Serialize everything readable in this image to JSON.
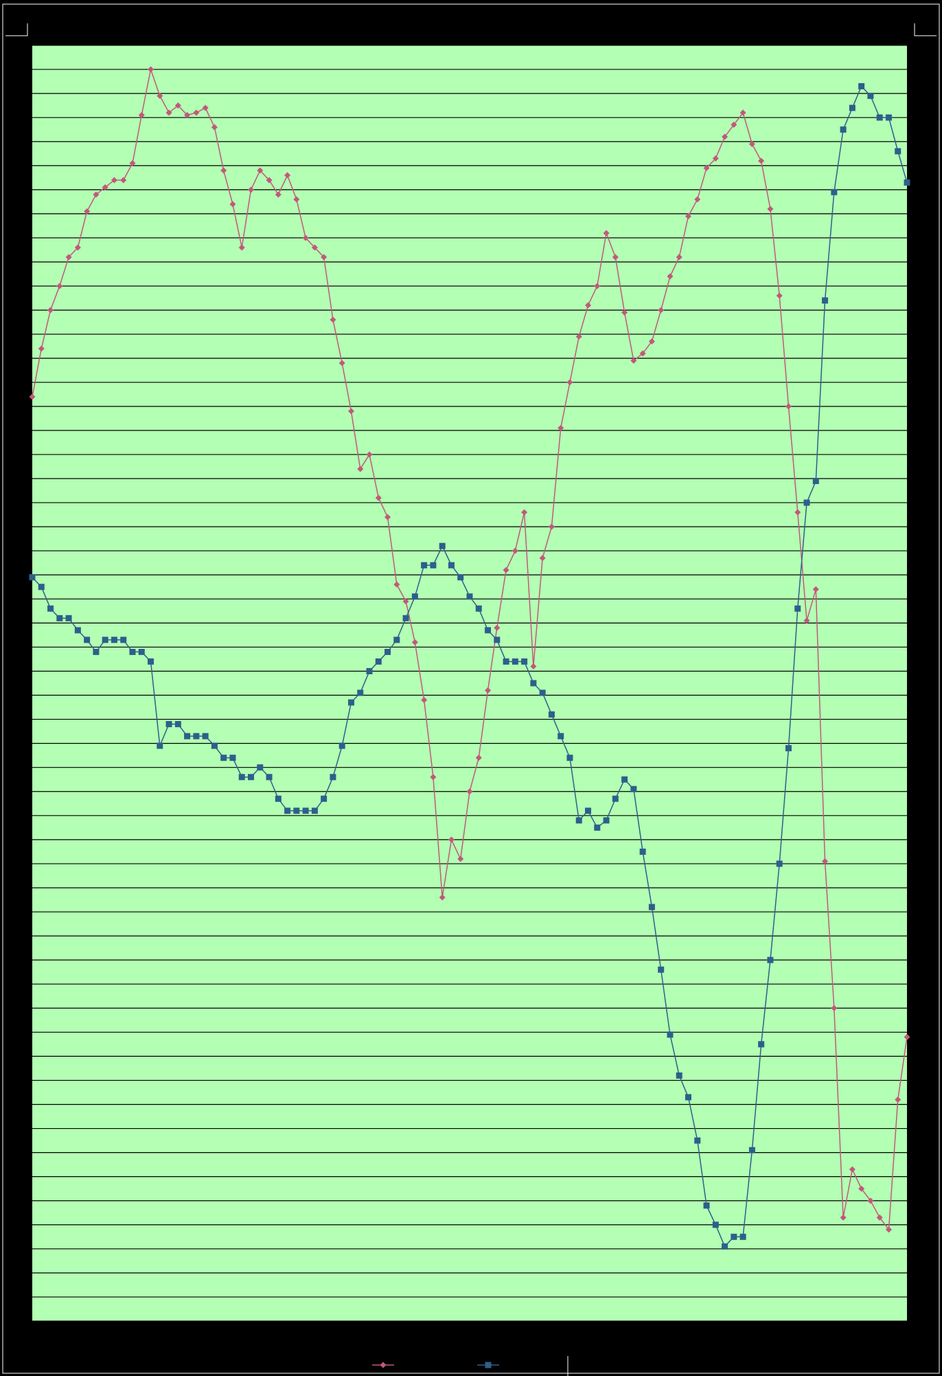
{
  "chart_data": {
    "type": "line",
    "x": [
      0,
      1,
      2,
      3,
      4,
      5,
      6,
      7,
      8,
      9,
      10,
      11,
      12,
      13,
      14,
      15,
      16,
      17,
      18,
      19,
      20,
      21,
      22,
      23,
      24,
      25,
      26,
      27,
      28,
      29,
      30,
      31,
      32,
      33,
      34,
      35,
      36,
      37,
      38,
      39,
      40,
      41,
      42,
      43,
      44,
      45,
      46,
      47,
      48,
      49,
      50,
      51,
      52,
      53,
      54,
      55,
      56,
      57,
      58,
      59,
      60,
      61,
      62,
      63,
      64,
      65,
      66,
      67,
      68,
      69,
      70,
      71,
      72,
      73,
      74,
      75,
      76,
      77,
      78,
      79,
      80,
      81,
      82,
      83,
      84,
      85,
      86,
      87,
      88,
      89,
      90,
      91,
      92,
      93,
      94,
      95,
      96
    ],
    "xlim": [
      0,
      96
    ],
    "ylim": [
      0,
      53
    ],
    "yticks": [
      0,
      1,
      2,
      3,
      4,
      5,
      6,
      7,
      8,
      9,
      10,
      11,
      12,
      13,
      14,
      15,
      16,
      17,
      18,
      19,
      20,
      21,
      22,
      23,
      24,
      25,
      26,
      27,
      28,
      29,
      30,
      31,
      32,
      33,
      34,
      35,
      36,
      37,
      38,
      39,
      40,
      41,
      42,
      43,
      44,
      45,
      46,
      47,
      48,
      49,
      50,
      51,
      52,
      53
    ],
    "grid": true,
    "background": "#b3ffb3",
    "legend": "bottom",
    "series": [
      {
        "color": "#c2587c",
        "marker": "diamond",
        "values": [
          38.4,
          40.4,
          42.0,
          43.0,
          44.2,
          44.6,
          46.1,
          46.8,
          47.1,
          47.4,
          47.4,
          48.1,
          50.1,
          52.0,
          50.9,
          50.2,
          50.5,
          50.1,
          50.2,
          50.4,
          49.6,
          47.8,
          46.4,
          44.6,
          47.0,
          47.8,
          47.4,
          46.8,
          47.6,
          46.6,
          45.0,
          44.6,
          44.2,
          41.6,
          39.8,
          37.8,
          35.4,
          36.0,
          34.2,
          33.4,
          30.6,
          29.9,
          28.2,
          25.8,
          22.6,
          17.6,
          20.0,
          19.2,
          22.0,
          23.4,
          26.2,
          28.8,
          31.2,
          32.0,
          33.6,
          27.2,
          31.7,
          33.0,
          37.1,
          39.0,
          40.9,
          42.2,
          43.0,
          45.2,
          44.2,
          41.9,
          39.9,
          40.2,
          40.7,
          42.0,
          43.4,
          44.2,
          45.9,
          46.6,
          47.9,
          48.3,
          49.2,
          49.7,
          50.2,
          48.9,
          48.2,
          46.2,
          42.6,
          38.0,
          33.6,
          29.1,
          30.4,
          19.1,
          13.0,
          4.3,
          6.3,
          5.5,
          5.0,
          4.3,
          3.8,
          9.2,
          11.8
        ]
      },
      {
        "color": "#2d5f8c",
        "marker": "square",
        "values": [
          30.9,
          30.5,
          29.6,
          29.2,
          29.2,
          28.7,
          28.3,
          27.8,
          28.3,
          28.3,
          28.3,
          27.8,
          27.8,
          27.4,
          23.9,
          24.8,
          24.8,
          24.3,
          24.3,
          24.3,
          23.9,
          23.4,
          23.4,
          22.6,
          22.6,
          23.0,
          22.6,
          21.7,
          21.2,
          21.2,
          21.2,
          21.2,
          21.7,
          22.6,
          23.9,
          25.7,
          26.1,
          27.0,
          27.4,
          27.8,
          28.3,
          29.2,
          30.1,
          31.4,
          31.4,
          32.2,
          31.4,
          30.9,
          30.1,
          29.6,
          28.7,
          28.3,
          27.4,
          27.4,
          27.4,
          26.5,
          26.1,
          25.2,
          24.3,
          23.4,
          20.8,
          21.2,
          20.5,
          20.8,
          21.7,
          22.5,
          22.1,
          19.5,
          17.2,
          14.6,
          11.9,
          10.2,
          9.3,
          7.5,
          4.8,
          4.0,
          3.1,
          3.5,
          3.5,
          7.1,
          11.5,
          15.0,
          19.0,
          23.8,
          29.6,
          34.0,
          34.9,
          42.4,
          46.9,
          49.5,
          50.4,
          51.3,
          50.9,
          50.0,
          50.0,
          48.6,
          47.3
        ]
      }
    ]
  }
}
